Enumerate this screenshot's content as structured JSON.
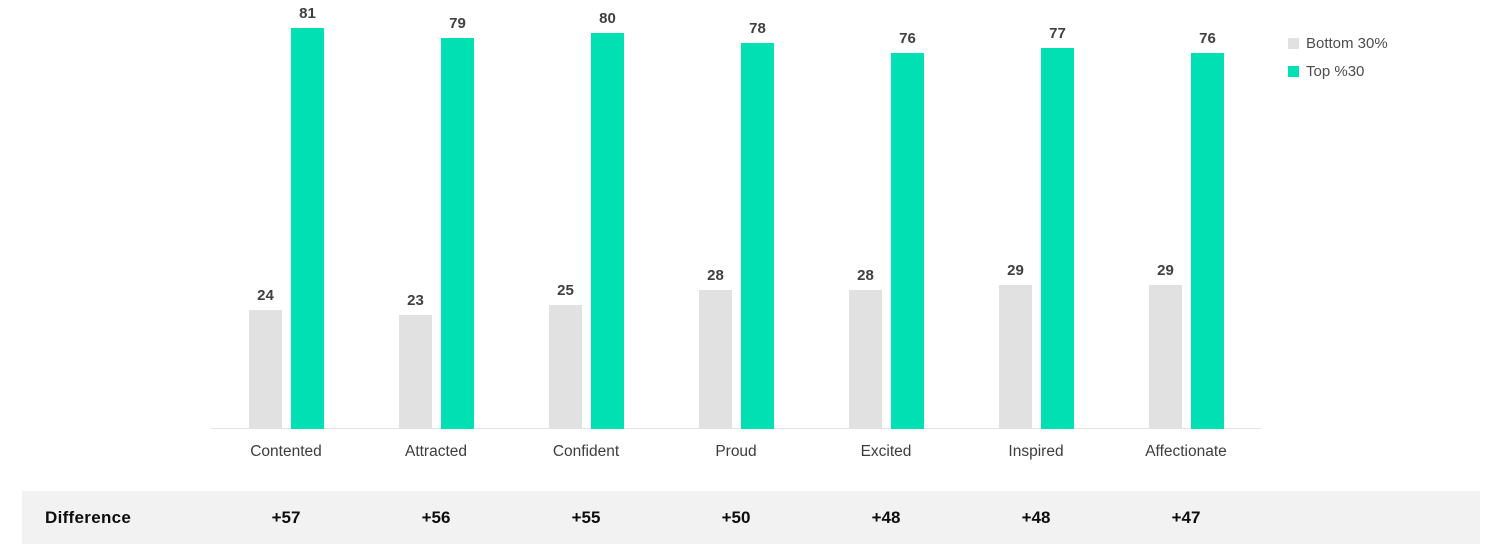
{
  "chart_data": {
    "type": "bar",
    "categories": [
      "Contented",
      "Attracted",
      "Confident",
      "Proud",
      "Excited",
      "Inspired",
      "Affectionate"
    ],
    "series": [
      {
        "name": "Bottom 30%",
        "color": "#e1e1e1",
        "values": [
          24,
          23,
          25,
          28,
          28,
          29,
          29
        ]
      },
      {
        "name": "Top %30",
        "color": "#01e0b2",
        "values": [
          81,
          79,
          80,
          78,
          76,
          77,
          76
        ]
      }
    ],
    "value_labels_shown": true,
    "ylim": [
      0,
      85
    ],
    "grid": false,
    "legend_position": "top-right",
    "xlabel": "",
    "ylabel": "",
    "title": "",
    "difference_row": {
      "label": "Difference",
      "values": [
        "+57",
        "+56",
        "+55",
        "+50",
        "+48",
        "+48",
        "+47"
      ]
    }
  },
  "styles": {
    "value_label_color": "#404040",
    "category_label_color": "#3d3d3d",
    "axis_line_color": "#e4e4e4",
    "difference_band_background": "#f2f2f2",
    "difference_text_color": "#0d0d0d",
    "legend_text_color": "#4d4d4d"
  }
}
